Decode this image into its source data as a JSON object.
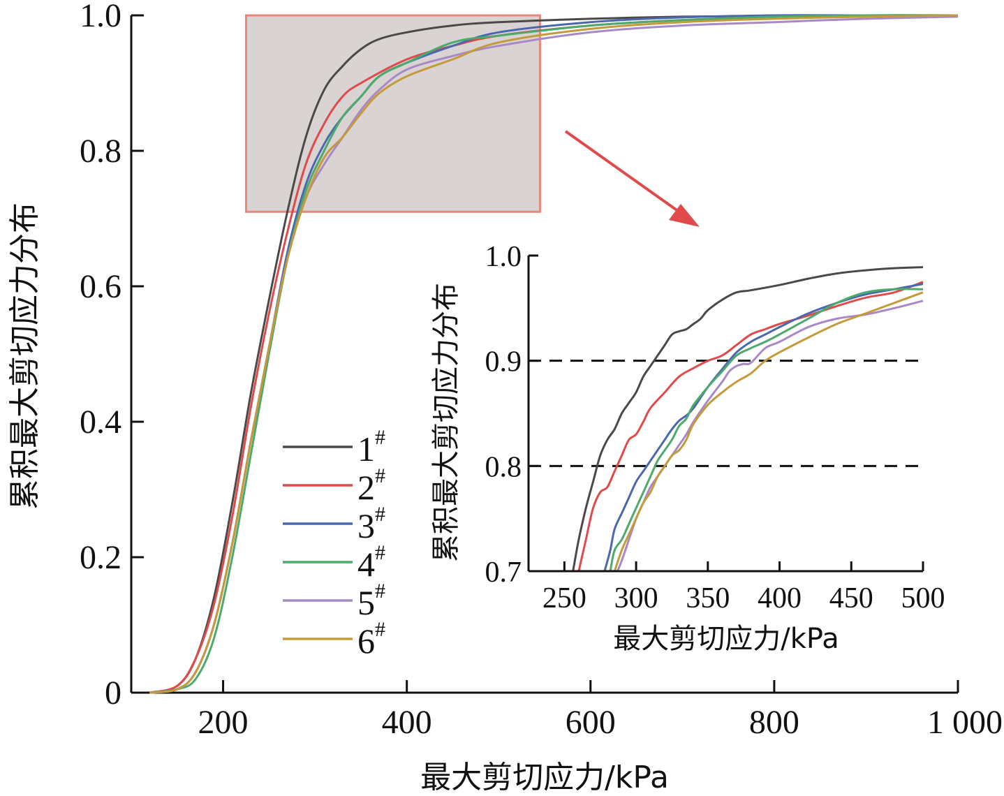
{
  "chart_data": [
    {
      "type": "line",
      "xlabel": "最大剪切应力/kPa",
      "ylabel": "累积最大剪切应力分布",
      "xlim": [
        100,
        1000
      ],
      "ylim": [
        0,
        1.0
      ],
      "xticks": [
        200,
        400,
        600,
        800,
        1000
      ],
      "xtick_labels": [
        "200",
        "400",
        "600",
        "800",
        "1 000"
      ],
      "yticks": [
        0,
        0.2,
        0.4,
        0.6,
        0.8,
        1.0
      ],
      "ytick_labels": [
        "0",
        "0.2",
        "0.4",
        "0.6",
        "0.8",
        "1.0"
      ],
      "grid": false,
      "legend_position": "center",
      "series": [
        {
          "name": "1#",
          "color": "#4d4848",
          "x": [
            120,
            150,
            170,
            190,
            210,
            230,
            250,
            270,
            290,
            310,
            330,
            350,
            370,
            400,
            450,
            500,
            600,
            700,
            800,
            900,
            1000
          ],
          "y": [
            0,
            0.01,
            0.05,
            0.14,
            0.28,
            0.44,
            0.58,
            0.71,
            0.82,
            0.89,
            0.925,
            0.95,
            0.965,
            0.975,
            0.985,
            0.99,
            0.995,
            0.998,
            0.999,
            1.0,
            1.0
          ]
        },
        {
          "name": "2#",
          "color": "#e04a4a",
          "x": [
            120,
            150,
            170,
            190,
            210,
            230,
            250,
            270,
            290,
            310,
            330,
            350,
            400,
            450,
            500,
            600,
            700,
            800,
            900,
            1000
          ],
          "y": [
            0,
            0.01,
            0.05,
            0.13,
            0.26,
            0.42,
            0.56,
            0.68,
            0.78,
            0.84,
            0.88,
            0.9,
            0.935,
            0.955,
            0.97,
            0.985,
            0.993,
            0.998,
            1.0,
            1.0
          ]
        },
        {
          "name": "3#",
          "color": "#4a68b0",
          "x": [
            120,
            150,
            170,
            190,
            210,
            230,
            250,
            270,
            290,
            310,
            330,
            350,
            370,
            400,
            450,
            500,
            600,
            700,
            800,
            900,
            1000
          ],
          "y": [
            0,
            0.005,
            0.03,
            0.1,
            0.22,
            0.37,
            0.51,
            0.65,
            0.75,
            0.81,
            0.85,
            0.88,
            0.91,
            0.93,
            0.955,
            0.975,
            0.99,
            0.997,
            1.0,
            1.0,
            1.0
          ]
        },
        {
          "name": "4#",
          "color": "#4caa6a",
          "x": [
            120,
            150,
            170,
            190,
            210,
            230,
            250,
            270,
            290,
            310,
            330,
            350,
            370,
            400,
            450,
            500,
            600,
            700,
            800,
            900,
            1000
          ],
          "y": [
            0,
            0.005,
            0.02,
            0.08,
            0.2,
            0.35,
            0.5,
            0.64,
            0.74,
            0.8,
            0.85,
            0.88,
            0.91,
            0.93,
            0.96,
            0.97,
            0.985,
            0.993,
            0.998,
            1.0,
            1.0
          ]
        },
        {
          "name": "5#",
          "color": "#a889c6",
          "x": [
            120,
            150,
            170,
            190,
            210,
            230,
            250,
            270,
            290,
            310,
            330,
            350,
            370,
            400,
            450,
            500,
            600,
            700,
            800,
            900,
            1000
          ],
          "y": [
            0,
            0.005,
            0.03,
            0.1,
            0.22,
            0.37,
            0.51,
            0.64,
            0.73,
            0.78,
            0.82,
            0.86,
            0.89,
            0.92,
            0.94,
            0.955,
            0.975,
            0.985,
            0.99,
            0.995,
            0.998
          ]
        },
        {
          "name": "6#",
          "color": "#c49a3a",
          "x": [
            120,
            150,
            170,
            190,
            210,
            230,
            250,
            270,
            290,
            310,
            330,
            350,
            370,
            400,
            450,
            500,
            600,
            700,
            800,
            900,
            1000
          ],
          "y": [
            0,
            0.005,
            0.03,
            0.1,
            0.22,
            0.37,
            0.51,
            0.64,
            0.73,
            0.79,
            0.82,
            0.855,
            0.885,
            0.91,
            0.935,
            0.96,
            0.98,
            0.99,
            0.995,
            0.998,
            1.0
          ]
        }
      ],
      "highlight_box": {
        "xlim": [
          225,
          545
        ],
        "ylim": [
          0.71,
          1.0
        ],
        "fill": "#d9d3d3",
        "stroke": "#e8877a"
      },
      "arrow_color": "#e04a4a"
    },
    {
      "type": "line",
      "xlabel": "最大剪切应力/kPa",
      "ylabel": "累积最大剪切应力分布",
      "xlim": [
        225,
        500
      ],
      "ylim": [
        0.7,
        1.0
      ],
      "xticks": [
        250,
        300,
        350,
        400,
        450,
        500
      ],
      "xtick_labels": [
        "250",
        "300",
        "350",
        "400",
        "450",
        "500"
      ],
      "yticks": [
        0.7,
        0.8,
        0.9,
        1.0
      ],
      "ytick_labels": [
        "0.7",
        "0.8",
        "0.9",
        "1.0"
      ],
      "reference_lines": [
        0.8,
        0.9
      ],
      "grid": false,
      "series": [
        {
          "name": "1#",
          "color": "#4d4848",
          "x": [
            256,
            260,
            265,
            270,
            275,
            280,
            285,
            290,
            295,
            300,
            305,
            310,
            315,
            320,
            325,
            330,
            335,
            340,
            345,
            350,
            360,
            370,
            380,
            400,
            420,
            440,
            460,
            480,
            500
          ],
          "y": [
            0.7,
            0.73,
            0.76,
            0.785,
            0.81,
            0.825,
            0.835,
            0.85,
            0.86,
            0.87,
            0.885,
            0.895,
            0.905,
            0.915,
            0.925,
            0.928,
            0.93,
            0.935,
            0.94,
            0.948,
            0.958,
            0.965,
            0.967,
            0.972,
            0.978,
            0.983,
            0.986,
            0.988,
            0.989
          ]
        },
        {
          "name": "2#",
          "color": "#e04a4a",
          "x": [
            260,
            265,
            270,
            275,
            280,
            285,
            290,
            295,
            300,
            305,
            310,
            320,
            330,
            340,
            350,
            360,
            370,
            380,
            390,
            400,
            420,
            440,
            460,
            480,
            500
          ],
          "y": [
            0.7,
            0.73,
            0.76,
            0.775,
            0.78,
            0.795,
            0.81,
            0.825,
            0.83,
            0.842,
            0.855,
            0.87,
            0.885,
            0.893,
            0.9,
            0.905,
            0.915,
            0.925,
            0.93,
            0.935,
            0.943,
            0.952,
            0.96,
            0.965,
            0.975
          ]
        },
        {
          "name": "3#",
          "color": "#4a68b0",
          "x": [
            278,
            282,
            285,
            290,
            295,
            300,
            305,
            310,
            315,
            320,
            325,
            330,
            335,
            340,
            350,
            360,
            370,
            380,
            390,
            400,
            420,
            440,
            460,
            480,
            500
          ],
          "y": [
            0.7,
            0.72,
            0.74,
            0.755,
            0.77,
            0.785,
            0.795,
            0.805,
            0.815,
            0.825,
            0.835,
            0.843,
            0.848,
            0.855,
            0.875,
            0.892,
            0.908,
            0.918,
            0.925,
            0.932,
            0.945,
            0.955,
            0.963,
            0.968,
            0.973
          ]
        },
        {
          "name": "4#",
          "color": "#4caa6a",
          "x": [
            282,
            285,
            290,
            295,
            300,
            305,
            310,
            315,
            320,
            325,
            330,
            335,
            340,
            350,
            360,
            370,
            380,
            390,
            400,
            420,
            440,
            460,
            480,
            500
          ],
          "y": [
            0.7,
            0.72,
            0.73,
            0.745,
            0.76,
            0.775,
            0.79,
            0.805,
            0.815,
            0.825,
            0.838,
            0.845,
            0.858,
            0.875,
            0.89,
            0.905,
            0.912,
            0.918,
            0.925,
            0.94,
            0.955,
            0.965,
            0.968,
            0.968
          ]
        },
        {
          "name": "5#",
          "color": "#a889c6",
          "x": [
            287,
            290,
            295,
            300,
            305,
            310,
            315,
            320,
            325,
            330,
            335,
            340,
            350,
            360,
            365,
            370,
            375,
            380,
            390,
            400,
            420,
            440,
            460,
            480,
            500
          ],
          "y": [
            0.7,
            0.71,
            0.73,
            0.75,
            0.765,
            0.78,
            0.79,
            0.8,
            0.81,
            0.82,
            0.83,
            0.842,
            0.862,
            0.88,
            0.89,
            0.895,
            0.897,
            0.898,
            0.912,
            0.918,
            0.932,
            0.94,
            0.944,
            0.95,
            0.957
          ]
        },
        {
          "name": "6#",
          "color": "#c49a3a",
          "x": [
            285,
            290,
            295,
            300,
            305,
            310,
            315,
            320,
            325,
            330,
            335,
            340,
            350,
            360,
            370,
            380,
            390,
            400,
            420,
            440,
            460,
            480,
            500
          ],
          "y": [
            0.7,
            0.72,
            0.735,
            0.75,
            0.765,
            0.775,
            0.79,
            0.8,
            0.81,
            0.815,
            0.825,
            0.84,
            0.858,
            0.87,
            0.88,
            0.888,
            0.9,
            0.908,
            0.922,
            0.935,
            0.945,
            0.955,
            0.965
          ]
        }
      ]
    }
  ]
}
